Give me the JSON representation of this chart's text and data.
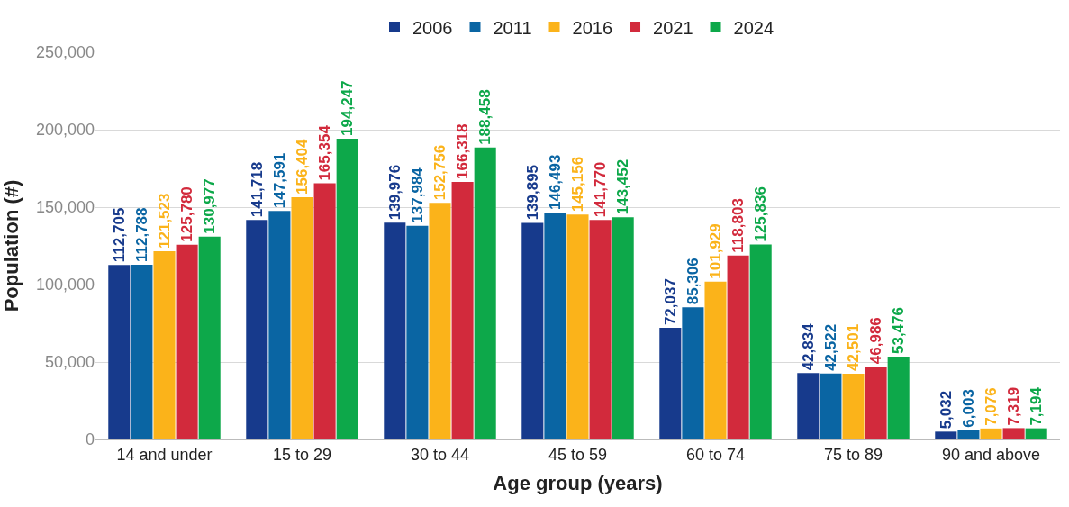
{
  "chart_data": {
    "type": "bar",
    "xlabel": "Age group (years)",
    "ylabel": "Population (#)",
    "categories": [
      "14 and under",
      "15 to 29",
      "30 to 44",
      "45 to 59",
      "60 to 74",
      "75 to 89",
      "90 and above"
    ],
    "series": [
      {
        "name": "2006",
        "color": "#173a8c",
        "values": [
          112705,
          141718,
          139976,
          139895,
          72037,
          42834,
          5032
        ],
        "value_labels": [
          "112,705",
          "141,718",
          "139,976",
          "139,895",
          "72,037",
          "42,834",
          "5,032"
        ]
      },
      {
        "name": "2011",
        "color": "#0a65a3",
        "values": [
          112788,
          147591,
          137984,
          146493,
          85306,
          42522,
          6003
        ],
        "value_labels": [
          "112,788",
          "147,591",
          "137,984",
          "146,493",
          "85,306",
          "42,522",
          "6,003"
        ]
      },
      {
        "name": "2016",
        "color": "#fbb31a",
        "values": [
          121523,
          156404,
          152756,
          145156,
          101929,
          42501,
          7076
        ],
        "value_labels": [
          "121,523",
          "156,404",
          "152,756",
          "145,156",
          "101,929",
          "42,501",
          "7,076"
        ]
      },
      {
        "name": "2021",
        "color": "#d22a3c",
        "values": [
          125780,
          165354,
          166318,
          141770,
          118803,
          46986,
          7319
        ],
        "value_labels": [
          "125,780",
          "165,354",
          "166,318",
          "141,770",
          "118,803",
          "46,986",
          "7,319"
        ]
      },
      {
        "name": "2024",
        "color": "#0da84a",
        "values": [
          130977,
          194247,
          188458,
          143452,
          125836,
          53476,
          7194
        ],
        "value_labels": [
          "130,977",
          "194,247",
          "188,458",
          "143,452",
          "125,836",
          "53,476",
          "7,194"
        ]
      }
    ],
    "ylim": [
      0,
      250000
    ],
    "yticks": [
      0,
      {
        "value": 50000,
        "label": "50,000"
      },
      {
        "value": 100000,
        "label": "100,000"
      },
      {
        "value": 150000,
        "label": "150,000"
      },
      {
        "value": 200000,
        "label": "200,000"
      },
      {
        "value": 250000,
        "label": "250,000"
      }
    ],
    "grid": "y",
    "legend": "top"
  }
}
